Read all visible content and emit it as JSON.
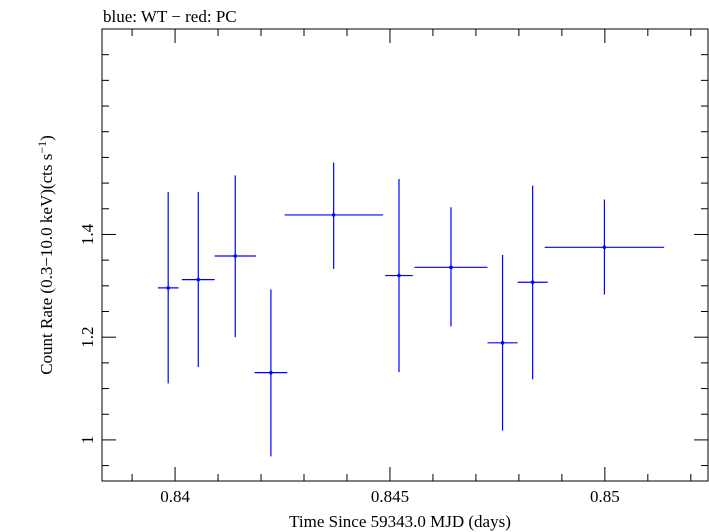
{
  "chart_data": {
    "type": "scatter",
    "title": "blue: WT − red: PC",
    "xlabel": "Time Since 59343.0 MJD (days)",
    "ylabel": "Count Rate (0.3−10.0 keV)(cts s",
    "ylabel_superscript": "−1",
    "ylabel_suffix": ")",
    "xlim": [
      0.8383,
      0.8524
    ],
    "ylim": [
      0.92,
      1.8
    ],
    "x_ticks": [
      {
        "value": 0.84,
        "label": "0.84"
      },
      {
        "value": 0.845,
        "label": "0.845"
      },
      {
        "value": 0.85,
        "label": "0.85"
      }
    ],
    "x_minor_step": 0.001,
    "y_ticks": [
      {
        "value": 1.0,
        "label": "1"
      },
      {
        "value": 1.2,
        "label": "1.2"
      },
      {
        "value": 1.4,
        "label": "1.4"
      }
    ],
    "y_minor_step": 0.05,
    "grid": false,
    "series": [
      {
        "color": "#0000ff",
        "points": [
          {
            "x": 0.83984,
            "y": 1.296,
            "x_lo": 0.8396,
            "x_hi": 0.84008,
            "y_lo": 1.11,
            "y_hi": 1.483
          },
          {
            "x": 0.84054,
            "y": 1.312,
            "x_lo": 0.84016,
            "x_hi": 0.84092,
            "y_lo": 1.142,
            "y_hi": 1.483
          },
          {
            "x": 0.8414,
            "y": 1.358,
            "x_lo": 0.84092,
            "x_hi": 0.84188,
            "y_lo": 1.2,
            "y_hi": 1.515
          },
          {
            "x": 0.84223,
            "y": 1.131,
            "x_lo": 0.84185,
            "x_hi": 0.84261,
            "y_lo": 0.968,
            "y_hi": 1.293
          },
          {
            "x": 0.84369,
            "y": 1.438,
            "x_lo": 0.84255,
            "x_hi": 0.84484,
            "y_lo": 1.333,
            "y_hi": 1.54
          },
          {
            "x": 0.84521,
            "y": 1.32,
            "x_lo": 0.84489,
            "x_hi": 0.84553,
            "y_lo": 1.132,
            "y_hi": 1.508
          },
          {
            "x": 0.84642,
            "y": 1.336,
            "x_lo": 0.84557,
            "x_hi": 0.84727,
            "y_lo": 1.221,
            "y_hi": 1.453
          },
          {
            "x": 0.84762,
            "y": 1.189,
            "x_lo": 0.84727,
            "x_hi": 0.84797,
            "y_lo": 1.018,
            "y_hi": 1.36
          },
          {
            "x": 0.84832,
            "y": 1.307,
            "x_lo": 0.84797,
            "x_hi": 0.84867,
            "y_lo": 1.118,
            "y_hi": 1.495
          },
          {
            "x": 0.84999,
            "y": 1.375,
            "x_lo": 0.8486,
            "x_hi": 0.85138,
            "y_lo": 1.283,
            "y_hi": 1.468
          }
        ]
      }
    ]
  }
}
